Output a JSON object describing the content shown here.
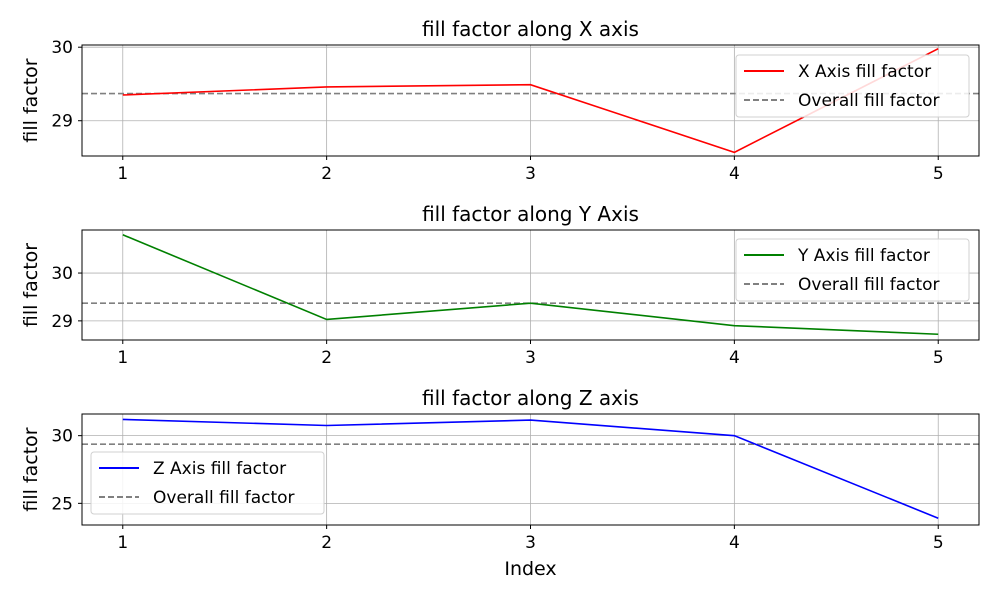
{
  "chart_data": [
    {
      "type": "line",
      "title": "fill factor along X axis",
      "xlabel": "",
      "ylabel": "fill factor",
      "x": [
        1,
        2,
        3,
        4,
        5
      ],
      "xlim": [
        0.8,
        5.2
      ],
      "ylim": [
        28.52,
        30.03
      ],
      "yticks": [
        29,
        30
      ],
      "grid": true,
      "legend_position": "top-right",
      "series": [
        {
          "name": "X Axis fill factor",
          "values": [
            29.35,
            29.46,
            29.49,
            28.57,
            29.98
          ],
          "color": "#ff0000",
          "style": "solid"
        }
      ],
      "reference_line": {
        "name": "Overall fill factor",
        "value": 29.37,
        "color": "#808080",
        "style": "dashed"
      }
    },
    {
      "type": "line",
      "title": "fill factor along Y Axis",
      "xlabel": "",
      "ylabel": "fill factor",
      "x": [
        1,
        2,
        3,
        4,
        5
      ],
      "xlim": [
        0.8,
        5.2
      ],
      "ylim": [
        28.6,
        30.9
      ],
      "yticks": [
        29,
        30
      ],
      "grid": true,
      "legend_position": "top-right",
      "series": [
        {
          "name": "Y Axis fill factor",
          "values": [
            30.8,
            29.03,
            29.37,
            28.9,
            28.72
          ],
          "color": "#008000",
          "style": "solid"
        }
      ],
      "reference_line": {
        "name": "Overall fill factor",
        "value": 29.37,
        "color": "#808080",
        "style": "dashed"
      }
    },
    {
      "type": "line",
      "title": "fill factor along Z axis",
      "xlabel": "Index",
      "ylabel": "fill factor",
      "x": [
        1,
        2,
        3,
        4,
        5
      ],
      "xlim": [
        0.8,
        5.2
      ],
      "ylim": [
        23.4,
        31.6
      ],
      "yticks": [
        25,
        30
      ],
      "grid": true,
      "legend_position": "center-left",
      "series": [
        {
          "name": "Z Axis fill factor",
          "values": [
            31.2,
            30.75,
            31.15,
            30.0,
            23.9
          ],
          "color": "#0000ff",
          "style": "solid"
        }
      ],
      "reference_line": {
        "name": "Overall fill factor",
        "value": 29.37,
        "color": "#808080",
        "style": "dashed"
      }
    }
  ]
}
